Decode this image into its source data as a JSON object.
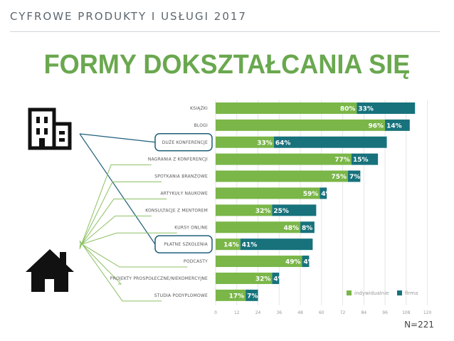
{
  "header": "CYFROWE PRODUKTY I USŁUGI 2017",
  "title": "FORMY DOKSZTAŁCANIA SIĘ",
  "note": "N=221",
  "colors": {
    "individual": "#7ab648",
    "company": "#17727c",
    "title": "#6aa84f",
    "connector_green": "#8cc063",
    "connector_blue": "#1f5f7a"
  },
  "icons": {
    "company": "office-building-icon",
    "home": "house-icon"
  },
  "chart_data": {
    "type": "bar",
    "orientation": "horizontal",
    "stacked": true,
    "categories": [
      "KSIĄŻKI",
      "BLOGI",
      "DUŻE KONFERENCJE",
      "NAGRANIA Z KONFERENCJI",
      "SPOTKANIA BRANŻOWE",
      "ARTYKUŁY NAUKOWE",
      "KONSULTACJE Z MENTOREM",
      "KURSY ONLINE",
      "PŁATNE SZKOLENIA",
      "PODCASTY",
      "PROJEKTY PROSPOŁECZNE/NIEKOMERCYJNE",
      "STUDIA PODYPLOMOWE"
    ],
    "series": [
      {
        "name": "indywidualnie",
        "values": [
          80,
          96,
          33,
          77,
          75,
          59,
          32,
          48,
          14,
          49,
          32,
          17
        ],
        "labels": [
          "80%",
          "96%",
          "33%",
          "77%",
          "75%",
          "59%",
          "32%",
          "48%",
          "14%",
          "49%",
          "32%",
          "17%"
        ]
      },
      {
        "name": "firma",
        "values": [
          33,
          14,
          64,
          15,
          7,
          4,
          25,
          8,
          41,
          4,
          4,
          7
        ],
        "labels": [
          "33%",
          "14%",
          "64%",
          "15%",
          "7%",
          "4%",
          "25%",
          "8%",
          "41%",
          "4%",
          "4%",
          "7%"
        ]
      }
    ],
    "xticks": [
      0,
      12,
      24,
      36,
      48,
      60,
      72,
      84,
      96,
      108,
      120
    ],
    "xlim": [
      0,
      120
    ],
    "grid": true,
    "legend": "bottom-right",
    "highlighted_categories": [
      "DUŻE KONFERENCJE",
      "PŁATNE SZKOLENIA"
    ]
  }
}
